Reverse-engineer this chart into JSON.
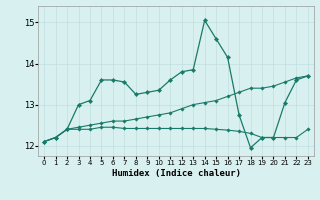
{
  "xlabel": "Humidex (Indice chaleur)",
  "xlim": [
    -0.5,
    23.5
  ],
  "ylim": [
    11.75,
    15.4
  ],
  "yticks": [
    12,
    13,
    14,
    15
  ],
  "xticks": [
    0,
    1,
    2,
    3,
    4,
    5,
    6,
    7,
    8,
    9,
    10,
    11,
    12,
    13,
    14,
    15,
    16,
    17,
    18,
    19,
    20,
    21,
    22,
    23
  ],
  "background_color": "#d8f0ef",
  "grid_color": "#c0dede",
  "line_color": "#1a7a6a",
  "series1_x": [
    0,
    1,
    2,
    3,
    4,
    5,
    6,
    7,
    8,
    9,
    10,
    11,
    12,
    13,
    14,
    15,
    16,
    17,
    18,
    19,
    20,
    21,
    22,
    23
  ],
  "series1_y": [
    12.1,
    12.2,
    12.4,
    13.0,
    13.1,
    13.6,
    13.6,
    13.55,
    13.25,
    13.3,
    13.35,
    13.6,
    13.8,
    13.85,
    15.05,
    14.6,
    14.15,
    12.75,
    11.95,
    12.2,
    12.2,
    13.05,
    13.6,
    13.7
  ],
  "series2_x": [
    0,
    1,
    2,
    3,
    4,
    5,
    6,
    7,
    8,
    9,
    10,
    11,
    12,
    13,
    14,
    15,
    16,
    17,
    18,
    19,
    20,
    21,
    22,
    23
  ],
  "series2_y": [
    12.1,
    12.2,
    12.4,
    12.4,
    12.4,
    12.45,
    12.45,
    12.42,
    12.42,
    12.42,
    12.42,
    12.42,
    12.42,
    12.42,
    12.42,
    12.4,
    12.38,
    12.35,
    12.3,
    12.2,
    12.2,
    12.2,
    12.2,
    12.4
  ],
  "series3_x": [
    0,
    1,
    2,
    3,
    4,
    5,
    6,
    7,
    8,
    9,
    10,
    11,
    12,
    13,
    14,
    15,
    16,
    17,
    18,
    19,
    20,
    21,
    22,
    23
  ],
  "series3_y": [
    12.1,
    12.2,
    12.4,
    12.45,
    12.5,
    12.55,
    12.6,
    12.6,
    12.65,
    12.7,
    12.75,
    12.8,
    12.9,
    13.0,
    13.05,
    13.1,
    13.2,
    13.3,
    13.4,
    13.4,
    13.45,
    13.55,
    13.65,
    13.7
  ]
}
